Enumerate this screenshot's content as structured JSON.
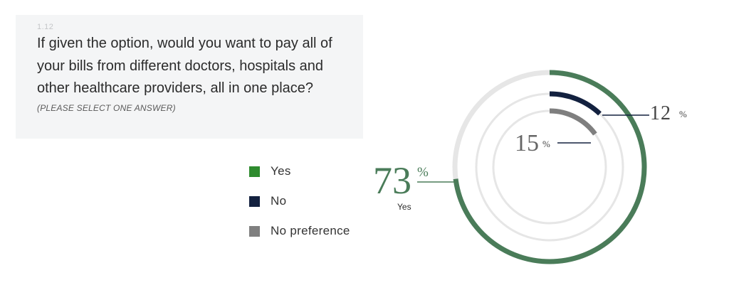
{
  "question": {
    "number": "1.12",
    "text": "If given the option, would you want to pay all of your bills from different doctors, hospitals and other healthcare providers, all in one place?",
    "instruction": "(PLEASE SELECT ONE ANSWER)"
  },
  "chart_data": {
    "type": "radial-bar",
    "series": [
      {
        "name": "Yes",
        "value": 73,
        "unit": "%",
        "label": "73",
        "sublabel": "Yes",
        "color": "#4a7c59"
      },
      {
        "name": "No",
        "value": 12,
        "unit": "%",
        "label": "12",
        "color": "#13213f"
      },
      {
        "name": "No preference",
        "value": 15,
        "unit": "%",
        "label": "15",
        "color": "#7f7f7f"
      }
    ],
    "max": 100,
    "track_color": "#e6e6e6",
    "legend_position": "left"
  }
}
